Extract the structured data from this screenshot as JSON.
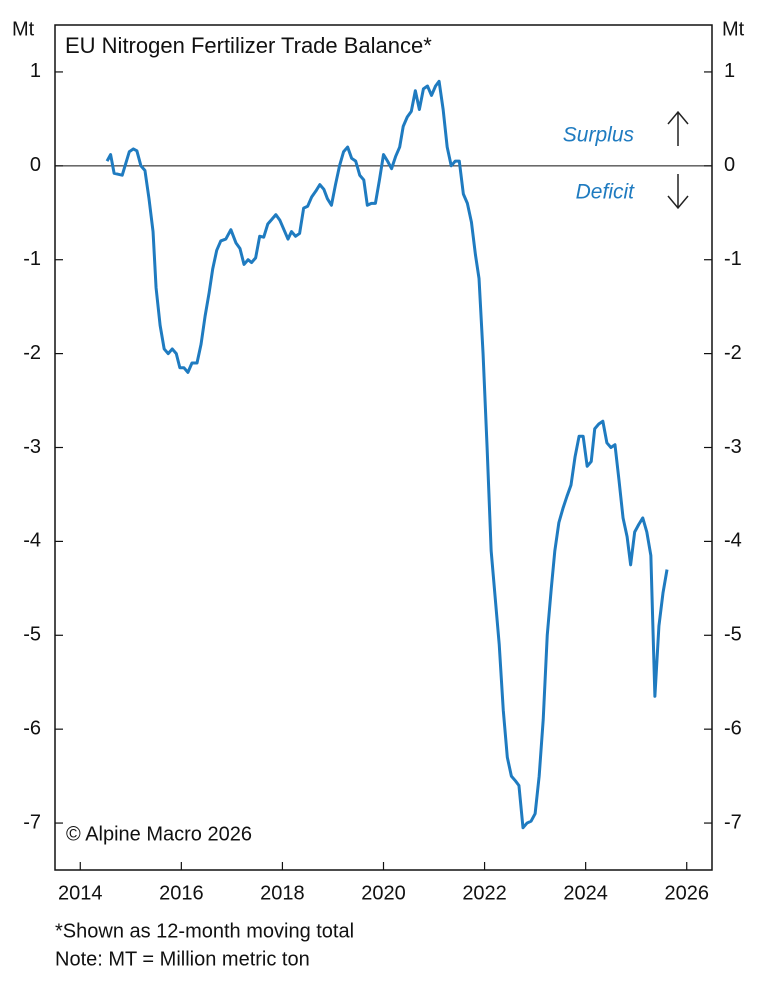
{
  "chart_data": {
    "type": "line",
    "title": "EU Nitrogen Fertilizer Trade Balance*",
    "y_label": "Mt",
    "y2_label": "Mt",
    "annotations": [
      "Surplus",
      "Deficit"
    ],
    "source": "© Alpine Macro 2026",
    "notes": [
      "*Shown as 12-month moving total",
      "Note: MT = Million metric ton"
    ],
    "color": "#1f7bc0",
    "reference_line": 0,
    "xlim": [
      2013.5,
      2026.5
    ],
    "xticks": [
      2014,
      2016,
      2018,
      2020,
      2022,
      2024,
      2026
    ],
    "ylim": [
      -7.5,
      1.5
    ],
    "yticks": [
      -7,
      -6,
      -5,
      -4,
      -3,
      -2,
      -1,
      0,
      1
    ],
    "y2lim": [
      -7.5,
      1.5
    ],
    "y2ticks": [
      -7,
      -6,
      -5,
      -4,
      -3,
      -2,
      -1,
      0,
      1
    ],
    "x": [
      2014.53,
      2014.6,
      2014.67,
      2014.83,
      2014.97,
      2015.05,
      2015.12,
      2015.2,
      2015.28,
      2015.36,
      2015.44,
      2015.5,
      2015.58,
      2015.66,
      2015.74,
      2015.82,
      2015.9,
      2015.97,
      2016.05,
      2016.13,
      2016.21,
      2016.31,
      2016.39,
      2016.47,
      2016.55,
      2016.62,
      2016.7,
      2016.78,
      2016.88,
      2016.98,
      2017.08,
      2017.16,
      2017.24,
      2017.32,
      2017.39,
      2017.47,
      2017.55,
      2017.63,
      2017.71,
      2017.79,
      2017.87,
      2017.95,
      2018.03,
      2018.11,
      2018.18,
      2018.26,
      2018.34,
      2018.42,
      2018.5,
      2018.58,
      2018.66,
      2018.74,
      2018.82,
      2018.89,
      2018.97,
      2019.05,
      2019.13,
      2019.21,
      2019.29,
      2019.37,
      2019.45,
      2019.53,
      2019.61,
      2019.68,
      2019.76,
      2019.84,
      2019.92,
      2020.0,
      2020.08,
      2020.16,
      2020.24,
      2020.32,
      2020.39,
      2020.47,
      2020.55,
      2020.63,
      2020.71,
      2020.79,
      2020.87,
      2020.95,
      2021.03,
      2021.1,
      2021.18,
      2021.26,
      2021.34,
      2021.42,
      2021.5,
      2021.58,
      2021.66,
      2021.74,
      2021.82,
      2021.89,
      2021.97,
      2022.05,
      2022.13,
      2022.21,
      2022.29,
      2022.37,
      2022.45,
      2022.53,
      2022.61,
      2022.68,
      2022.76,
      2022.84,
      2022.92,
      2023.0,
      2023.08,
      2023.16,
      2023.24,
      2023.32,
      2023.39,
      2023.47,
      2023.55,
      2023.63,
      2023.71,
      2023.79,
      2023.87,
      2023.95,
      2024.03,
      2024.11,
      2024.18,
      2024.26,
      2024.34,
      2024.42,
      2024.5,
      2024.58,
      2024.66,
      2024.74,
      2024.82,
      2024.89,
      2024.97,
      2025.05,
      2025.13,
      2025.21,
      2025.29,
      2025.37,
      2025.45,
      2025.53,
      2025.61
    ],
    "values": [
      0.05,
      0.12,
      -0.08,
      -0.1,
      0.15,
      0.18,
      0.16,
      0.0,
      -0.05,
      -0.35,
      -0.7,
      -1.3,
      -1.7,
      -1.95,
      -2.0,
      -1.95,
      -2.0,
      -2.15,
      -2.15,
      -2.2,
      -2.1,
      -2.1,
      -1.9,
      -1.6,
      -1.35,
      -1.1,
      -0.9,
      -0.8,
      -0.78,
      -0.68,
      -0.82,
      -0.88,
      -1.05,
      -1.0,
      -1.03,
      -0.98,
      -0.75,
      -0.76,
      -0.62,
      -0.57,
      -0.52,
      -0.58,
      -0.68,
      -0.78,
      -0.7,
      -0.75,
      -0.72,
      -0.45,
      -0.43,
      -0.33,
      -0.27,
      -0.2,
      -0.25,
      -0.35,
      -0.42,
      -0.2,
      0.0,
      0.15,
      0.2,
      0.08,
      0.05,
      -0.1,
      -0.15,
      -0.42,
      -0.4,
      -0.4,
      -0.15,
      0.12,
      0.05,
      -0.03,
      0.1,
      0.2,
      0.42,
      0.52,
      0.58,
      0.8,
      0.6,
      0.82,
      0.85,
      0.75,
      0.85,
      0.9,
      0.6,
      0.2,
      0.0,
      0.05,
      0.05,
      -0.3,
      -0.4,
      -0.6,
      -0.95,
      -1.2,
      -2.0,
      -3.0,
      -4.1,
      -4.6,
      -5.1,
      -5.8,
      -6.3,
      -6.5,
      -6.55,
      -6.6,
      -7.05,
      -7.0,
      -6.98,
      -6.9,
      -6.5,
      -5.9,
      -5.0,
      -4.5,
      -4.1,
      -3.8,
      -3.65,
      -3.52,
      -3.4,
      -3.1,
      -2.88,
      -2.88,
      -3.2,
      -3.15,
      -2.8,
      -2.75,
      -2.72,
      -2.95,
      -3.0,
      -2.97,
      -3.35,
      -3.75,
      -3.95,
      -4.25,
      -3.9,
      -3.82,
      -3.75,
      -3.9,
      -4.15,
      -5.65,
      -4.9,
      -4.55,
      -4.3
    ]
  }
}
